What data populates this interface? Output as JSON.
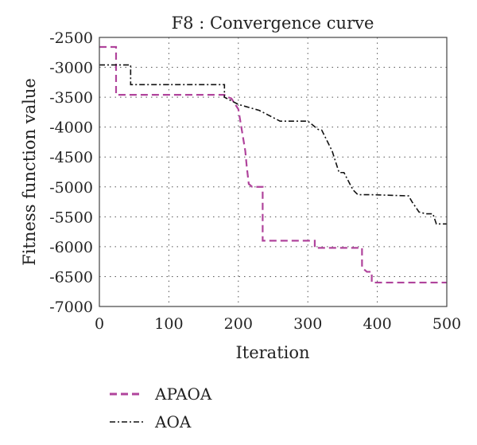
{
  "chart_data": {
    "type": "line",
    "title": "F8 : Convergence curve",
    "xlabel": "Iteration",
    "ylabel": "Fitness function value",
    "xlim": [
      0,
      500
    ],
    "ylim": [
      -7000,
      -2500
    ],
    "xticks": [
      "0",
      "100",
      "200",
      "300",
      "400",
      "500"
    ],
    "yticks": [
      "-2500",
      "-3000",
      "-3500",
      "-4000",
      "-4500",
      "-5000",
      "-5500",
      "-6000",
      "-6500",
      "-7000"
    ],
    "grid": true,
    "legend_position": "bottom-left, below plot",
    "series": [
      {
        "name": "APAOA",
        "color": "#b0449c",
        "style": "dashed",
        "x": [
          0,
          24,
          24,
          180,
          180,
          190,
          200,
          205,
          210,
          212,
          215,
          220,
          228,
          235,
          235,
          310,
          310,
          378,
          378,
          385,
          392,
          392,
          500
        ],
        "y": [
          -2660,
          -2660,
          -3460,
          -3460,
          -3480,
          -3520,
          -3700,
          -4050,
          -4400,
          -4650,
          -4950,
          -5000,
          -5000,
          -5000,
          -5900,
          -5900,
          -6020,
          -6020,
          -6350,
          -6420,
          -6420,
          -6600,
          -6600
        ]
      },
      {
        "name": "AOA",
        "color": "#111111",
        "style": "dashdot",
        "x": [
          0,
          45,
          45,
          180,
          180,
          200,
          230,
          260,
          300,
          315,
          320,
          335,
          345,
          352,
          365,
          372,
          390,
          445,
          450,
          460,
          470,
          480,
          485,
          500
        ],
        "y": [
          -2960,
          -2960,
          -3290,
          -3290,
          -3500,
          -3620,
          -3720,
          -3900,
          -3900,
          -4040,
          -4050,
          -4400,
          -4760,
          -4760,
          -5050,
          -5130,
          -5130,
          -5150,
          -5250,
          -5420,
          -5450,
          -5450,
          -5620,
          -5620
        ]
      }
    ]
  }
}
